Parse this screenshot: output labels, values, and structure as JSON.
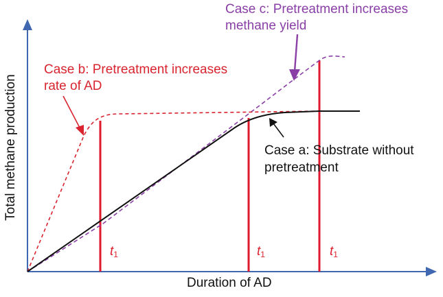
{
  "axes": {
    "x_title": "Duration of AD",
    "y_title": "Total methane production",
    "color": "#3f68b0"
  },
  "annotations": {
    "case_a": [
      "Case a: Substrate without",
      "pretreatment"
    ],
    "case_b": [
      "Case b: Pretreatment increases",
      "rate of AD"
    ],
    "case_c": [
      "Case c: Pretreatment increases",
      "methane yield"
    ]
  },
  "time_markers": [
    {
      "letter": "t",
      "sub": "1"
    },
    {
      "letter": "t",
      "sub": "1"
    },
    {
      "letter": "t",
      "sub": "1"
    }
  ],
  "colors": {
    "case_a": "#111111",
    "case_b": "#d9242f",
    "case_c": "#8a3fa6",
    "markers": "#e0192f"
  }
}
